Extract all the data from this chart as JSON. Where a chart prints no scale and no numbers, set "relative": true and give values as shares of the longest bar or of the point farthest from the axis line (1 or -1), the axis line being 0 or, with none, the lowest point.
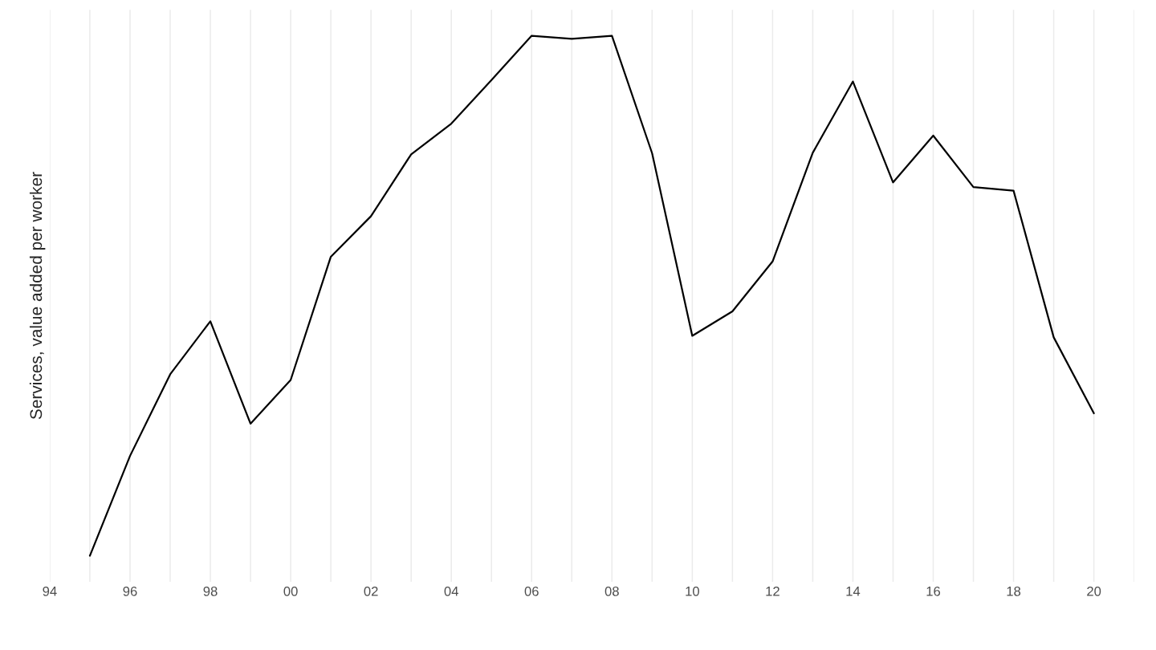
{
  "chart_data": {
    "type": "line",
    "ylabel": "Services, value added per worker",
    "relative": true,
    "x": [
      1995,
      1996,
      1997,
      1998,
      1999,
      2000,
      2001,
      2002,
      2003,
      2004,
      2005,
      2006,
      2007,
      2008,
      2009,
      2010,
      2011,
      2012,
      2013,
      2014,
      2015,
      2016,
      2017,
      2018,
      2019,
      2020
    ],
    "series": [
      {
        "color": "#000000",
        "values": [
          0,
          0.192,
          0.349,
          0.451,
          0.254,
          0.338,
          0.575,
          0.653,
          0.772,
          0.831,
          0.915,
          1.0,
          0.994,
          1.0,
          0.774,
          0.423,
          0.47,
          0.566,
          0.775,
          0.912,
          0.718,
          0.808,
          0.709,
          0.702,
          0.42,
          0.274
        ]
      }
    ],
    "xlim": [
      1994,
      2021
    ],
    "xticks": [
      {
        "value": 1994,
        "label": "94"
      },
      {
        "value": 1995,
        "label": null
      },
      {
        "value": 1996,
        "label": "96"
      },
      {
        "value": 1997,
        "label": null
      },
      {
        "value": 1998,
        "label": "98"
      },
      {
        "value": 1999,
        "label": null
      },
      {
        "value": 2000,
        "label": "00"
      },
      {
        "value": 2001,
        "label": null
      },
      {
        "value": 2002,
        "label": "02"
      },
      {
        "value": 2003,
        "label": null
      },
      {
        "value": 2004,
        "label": "04"
      },
      {
        "value": 2005,
        "label": null
      },
      {
        "value": 2006,
        "label": "06"
      },
      {
        "value": 2007,
        "label": null
      },
      {
        "value": 2008,
        "label": "08"
      },
      {
        "value": 2009,
        "label": null
      },
      {
        "value": 2010,
        "label": "10"
      },
      {
        "value": 2011,
        "label": null
      },
      {
        "value": 2012,
        "label": "12"
      },
      {
        "value": 2013,
        "label": null
      },
      {
        "value": 2014,
        "label": "14"
      },
      {
        "value": 2015,
        "label": null
      },
      {
        "value": 2016,
        "label": "16"
      },
      {
        "value": 2017,
        "label": null
      },
      {
        "value": 2018,
        "label": "18"
      },
      {
        "value": 2019,
        "label": null
      },
      {
        "value": 2020,
        "label": "20"
      },
      {
        "value": 2021,
        "label": null
      }
    ],
    "grid": "x",
    "marker": "none",
    "line_style": "solid"
  }
}
